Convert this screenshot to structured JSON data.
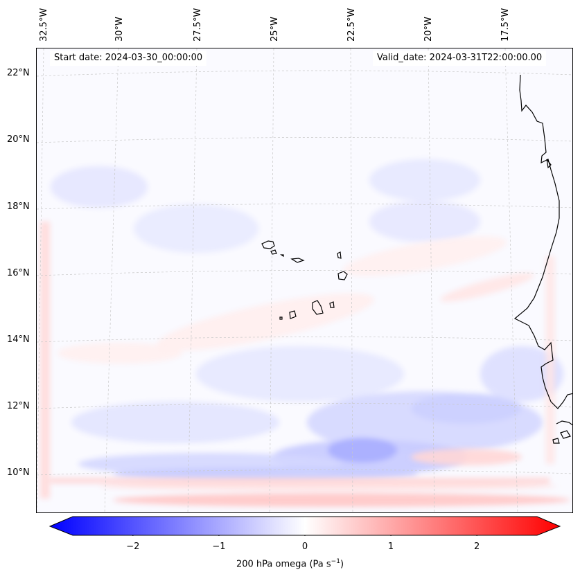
{
  "map": {
    "start_date": "Start date: 2024-03-30_00:00:00",
    "valid_date": "Valid_date: 2024-03-31T22:00:00.00",
    "longitude_labels": [
      "32.5°W",
      "30°W",
      "27.5°W",
      "25°W",
      "22.5°W",
      "20°W",
      "17.5°W"
    ],
    "latitude_labels": [
      "22°N",
      "20°N",
      "18°N",
      "16°N",
      "14°N",
      "12°N",
      "10°N"
    ],
    "colors": {
      "neg_max": "#0000ff",
      "neutral": "#ffffff",
      "pos_max": "#ff0000",
      "gridline": "#c8c8c8",
      "coast": "#000000"
    },
    "features": [
      "Cape Verde islands",
      "West African coast (Senegal, Mauritania, Guinea-Bissau)"
    ]
  },
  "colorbar": {
    "min": -2.7,
    "max": 2.7,
    "tick_values": [
      -2,
      -1,
      0,
      1,
      2
    ],
    "tick_labels": [
      "−2",
      "−1",
      "0",
      "1",
      "2"
    ],
    "label_main": "200 hPa omega (Pa s",
    "label_sup": "−1",
    "label_end": ")"
  }
}
